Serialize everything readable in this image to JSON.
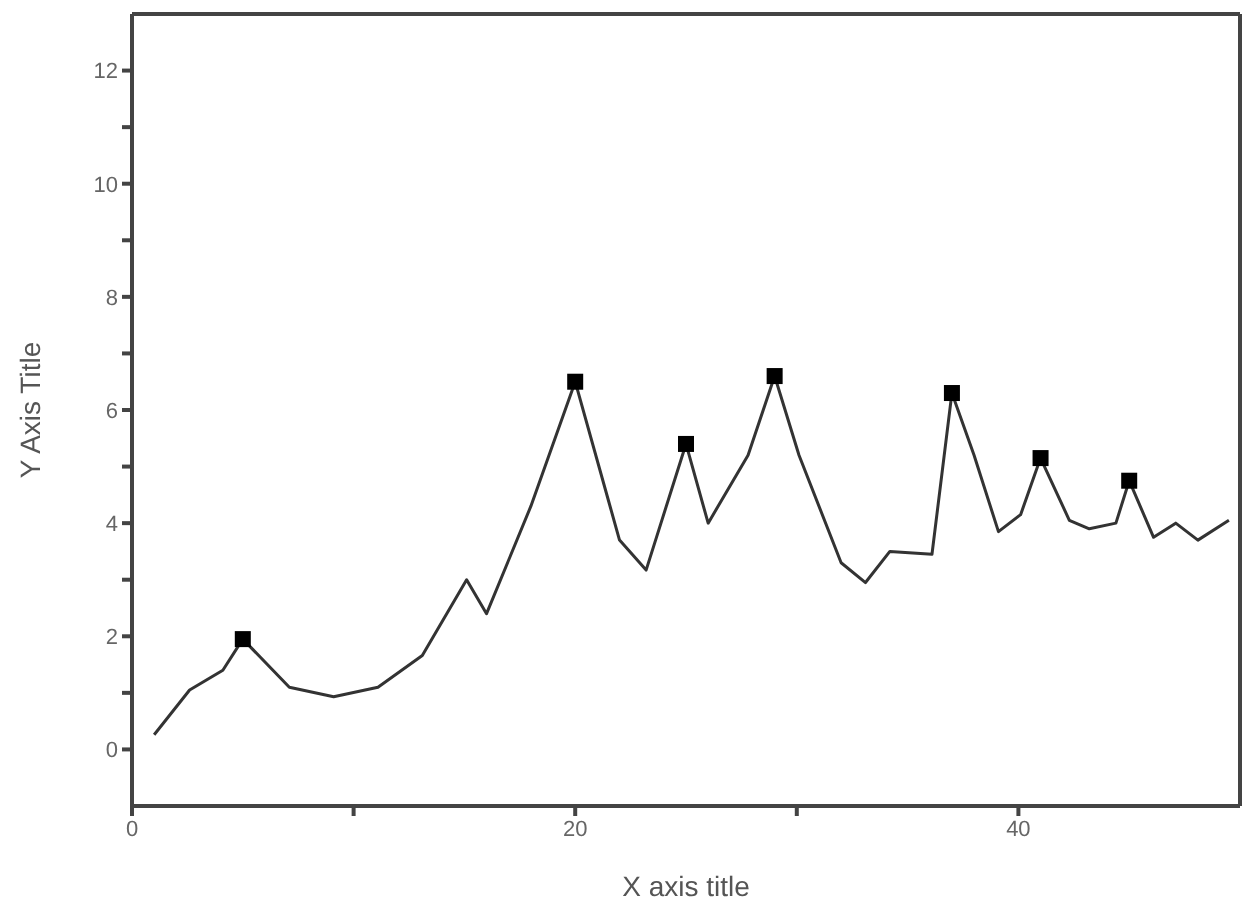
{
  "chart_data": {
    "type": "line",
    "xlabel": "X axis title",
    "ylabel": "Y Axis Title",
    "xlim": [
      0,
      50
    ],
    "xticks": [
      0,
      {
        "value": 10,
        "label": null
      },
      20,
      {
        "value": 30,
        "label": null
      },
      40
    ],
    "ylim": [
      -1,
      13
    ],
    "yticks": [
      0,
      {
        "value": 1,
        "label": null
      },
      2,
      {
        "value": 3,
        "label": null
      },
      4,
      {
        "value": 5,
        "label": null
      },
      6,
      {
        "value": 7,
        "label": null
      },
      8,
      {
        "value": 9,
        "label": null
      },
      10,
      {
        "value": 11,
        "label": null
      },
      12
    ],
    "grid": false,
    "series": [
      {
        "color": "#333333",
        "marker": "none",
        "x": [
          1,
          2.6,
          4.1,
          5,
          7.1,
          9.1,
          11.1,
          13.1,
          15.1,
          16,
          18,
          20,
          21.5,
          22,
          23.2,
          25,
          26,
          27.8,
          29,
          30.1,
          32,
          33.1,
          34.2,
          36.1,
          37,
          38,
          39.1,
          40.1,
          41,
          42.3,
          43.2,
          44.4,
          45,
          46.1,
          47.1,
          48.1,
          49.5
        ],
        "values": [
          0.26,
          1.05,
          1.4,
          1.95,
          1.1,
          0.93,
          1.1,
          1.66,
          3.0,
          2.4,
          4.3,
          6.5,
          4.4,
          3.7,
          3.17,
          5.4,
          4.0,
          5.2,
          6.6,
          5.2,
          3.3,
          2.95,
          3.5,
          3.45,
          6.3,
          5.2,
          3.85,
          4.15,
          5.15,
          4.05,
          3.9,
          4.0,
          4.75,
          3.75,
          4.0,
          3.7,
          4.05
        ]
      },
      {
        "type": "scatter",
        "color": "#000000",
        "marker": "square",
        "x": [
          5,
          20,
          25,
          29,
          37,
          41,
          45
        ],
        "values": [
          1.95,
          6.5,
          5.4,
          6.6,
          6.3,
          5.15,
          4.75
        ]
      }
    ]
  }
}
